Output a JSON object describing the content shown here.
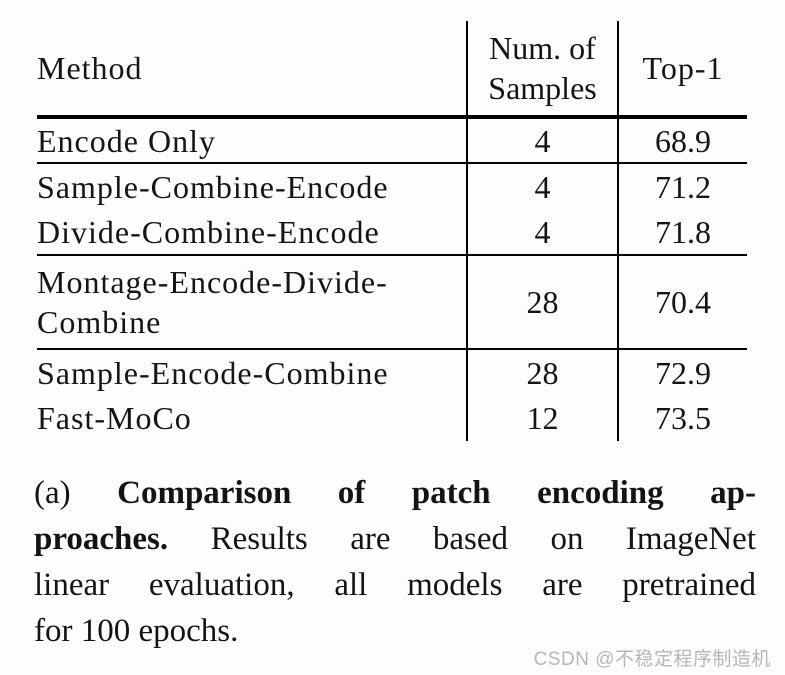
{
  "table": {
    "headers": {
      "method": "Method",
      "samples_line1": "Num. of",
      "samples_line2": "Samples",
      "top1": "Top-1"
    },
    "rows": [
      {
        "method": "Encode Only",
        "samples": "4",
        "top1": "68.9"
      },
      {
        "method": "Sample-Combine-Encode",
        "samples": "4",
        "top1": "71.2"
      },
      {
        "method": "Divide-Combine-Encode",
        "samples": "4",
        "top1": "71.8"
      },
      {
        "method": "Montage-Encode-Divide-Combine",
        "samples": "28",
        "top1": "70.4"
      },
      {
        "method": "Sample-Encode-Combine",
        "samples": "28",
        "top1": "72.9"
      },
      {
        "method": "Fast-MoCo",
        "samples": "12",
        "top1": "73.5"
      }
    ]
  },
  "caption": {
    "label": "(a) ",
    "bold_line1": "Comparison of patch encoding ap-",
    "bold_line2": "proaches.",
    "regular_line2": " Results are based on ImageNet",
    "line3": "linear evaluation, all models are pretrained",
    "line4": "for 100 epochs."
  },
  "watermark": {
    "text": "CSDN @不稳定程序制造机"
  },
  "colors": {
    "background": "#fdfdfd",
    "text": "#151515",
    "rule": "#000000",
    "watermark": "#b6b6b6"
  }
}
